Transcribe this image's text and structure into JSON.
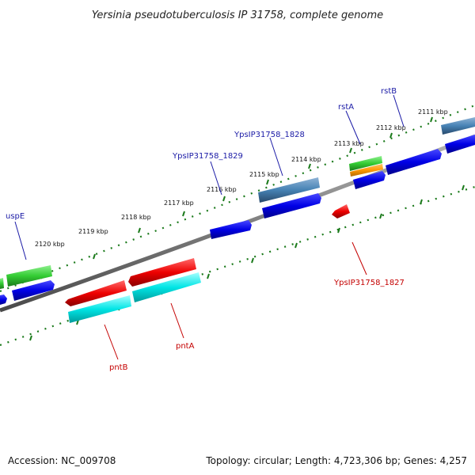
{
  "title": "Yersinia pseudotuberculosis IP 31758, complete genome",
  "accession": "Accession: NC_009708",
  "summary": "Topology: circular; Length: 4,723,306 bp; Genes: 4,257",
  "ruler_labels": [
    "2111 kbp",
    "2112 kbp",
    "2113 kbp",
    "2114 kbp",
    "2115 kbp",
    "2116 kbp",
    "2117 kbp",
    "2118 kbp",
    "2119 kbp",
    "2120 kbp"
  ],
  "gene_labels": {
    "rstB": "rstB",
    "rstA": "rstA",
    "ypsIP1828": "YpsIP31758_1828",
    "ypsIP1829": "YpsIP31758_1829",
    "uspE": "uspE",
    "ypsIP1827": "YpsIP31758_1827",
    "pntA": "pntA",
    "pntB": "pntB"
  },
  "colors": {
    "backbone": "#7f7f7f",
    "ruler_tick": "#1b7a1b",
    "cds_forward": "#0000e0",
    "cds_reverse": "#e00000",
    "blue_label": "#1a1aa6",
    "red_label": "#c40000",
    "steelblue_feature": "#4682b4",
    "green_feature": "#33cc33",
    "orange_feature": "#ff9900",
    "cyan_feature": "#00e5e5"
  }
}
